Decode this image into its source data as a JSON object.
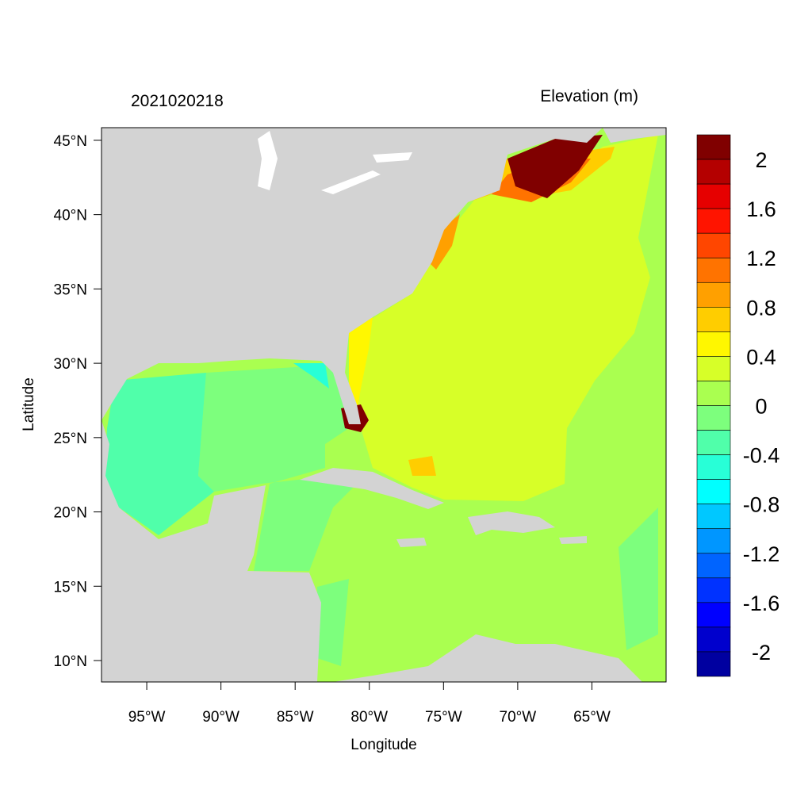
{
  "chart_data": {
    "type": "heatmap",
    "title_left": "2021020218",
    "title_right": "Elevation (m)",
    "xlabel": "Longitude",
    "ylabel": "Latitude",
    "xlim": [
      -98.05,
      -60.0
    ],
    "ylim": [
      8.56,
      45.85
    ],
    "x_ticks": [
      {
        "value": -95,
        "label": "95°W"
      },
      {
        "value": -90,
        "label": "90°W"
      },
      {
        "value": -85,
        "label": "85°W"
      },
      {
        "value": -80,
        "label": "80°W"
      },
      {
        "value": -75,
        "label": "75°W"
      },
      {
        "value": -70,
        "label": "70°W"
      },
      {
        "value": -65,
        "label": "65°W"
      }
    ],
    "y_ticks": [
      {
        "value": 45,
        "label": "45°N"
      },
      {
        "value": 40,
        "label": "40°N"
      },
      {
        "value": 35,
        "label": "35°N"
      },
      {
        "value": 30,
        "label": "30°N"
      },
      {
        "value": 25,
        "label": "25°N"
      },
      {
        "value": 20,
        "label": "20°N"
      },
      {
        "value": 15,
        "label": "15°N"
      },
      {
        "value": 10,
        "label": "10°N"
      }
    ],
    "colorbar": {
      "levels": [
        -2.2,
        -2.0,
        -1.8,
        -1.6,
        -1.4,
        -1.2,
        -1.0,
        -0.8,
        -0.6,
        -0.4,
        -0.2,
        0,
        0.2,
        0.4,
        0.6,
        0.8,
        1.0,
        1.2,
        1.4,
        1.6,
        1.8,
        2.0,
        2.2
      ],
      "labels": [
        {
          "value": 2,
          "label": "2"
        },
        {
          "value": 1.6,
          "label": "1.6"
        },
        {
          "value": 1.2,
          "label": "1.2"
        },
        {
          "value": 0.8,
          "label": "0.8"
        },
        {
          "value": 0.4,
          "label": "0.4"
        },
        {
          "value": 0,
          "label": "0"
        },
        {
          "value": -0.4,
          "label": "-0.4"
        },
        {
          "value": -0.8,
          "label": "-0.8"
        },
        {
          "value": -1.2,
          "label": "-1.2"
        },
        {
          "value": -1.6,
          "label": "-1.6"
        },
        {
          "value": -2,
          "label": "-2"
        }
      ],
      "colors_top_to_bottom": [
        "#800000",
        "#b40000",
        "#e60000",
        "#ff1400",
        "#ff4600",
        "#ff7300",
        "#ffa000",
        "#ffcd00",
        "#fff700",
        "#d7ff28",
        "#aaff50",
        "#7dff7d",
        "#50ffaa",
        "#28ffd7",
        "#00ffff",
        "#00c8ff",
        "#0096ff",
        "#0064ff",
        "#0032ff",
        "#0000ff",
        "#0000cd",
        "#0000a0"
      ]
    },
    "land_color": "#d3d3d3",
    "grid": false,
    "legend_placement": "right"
  }
}
